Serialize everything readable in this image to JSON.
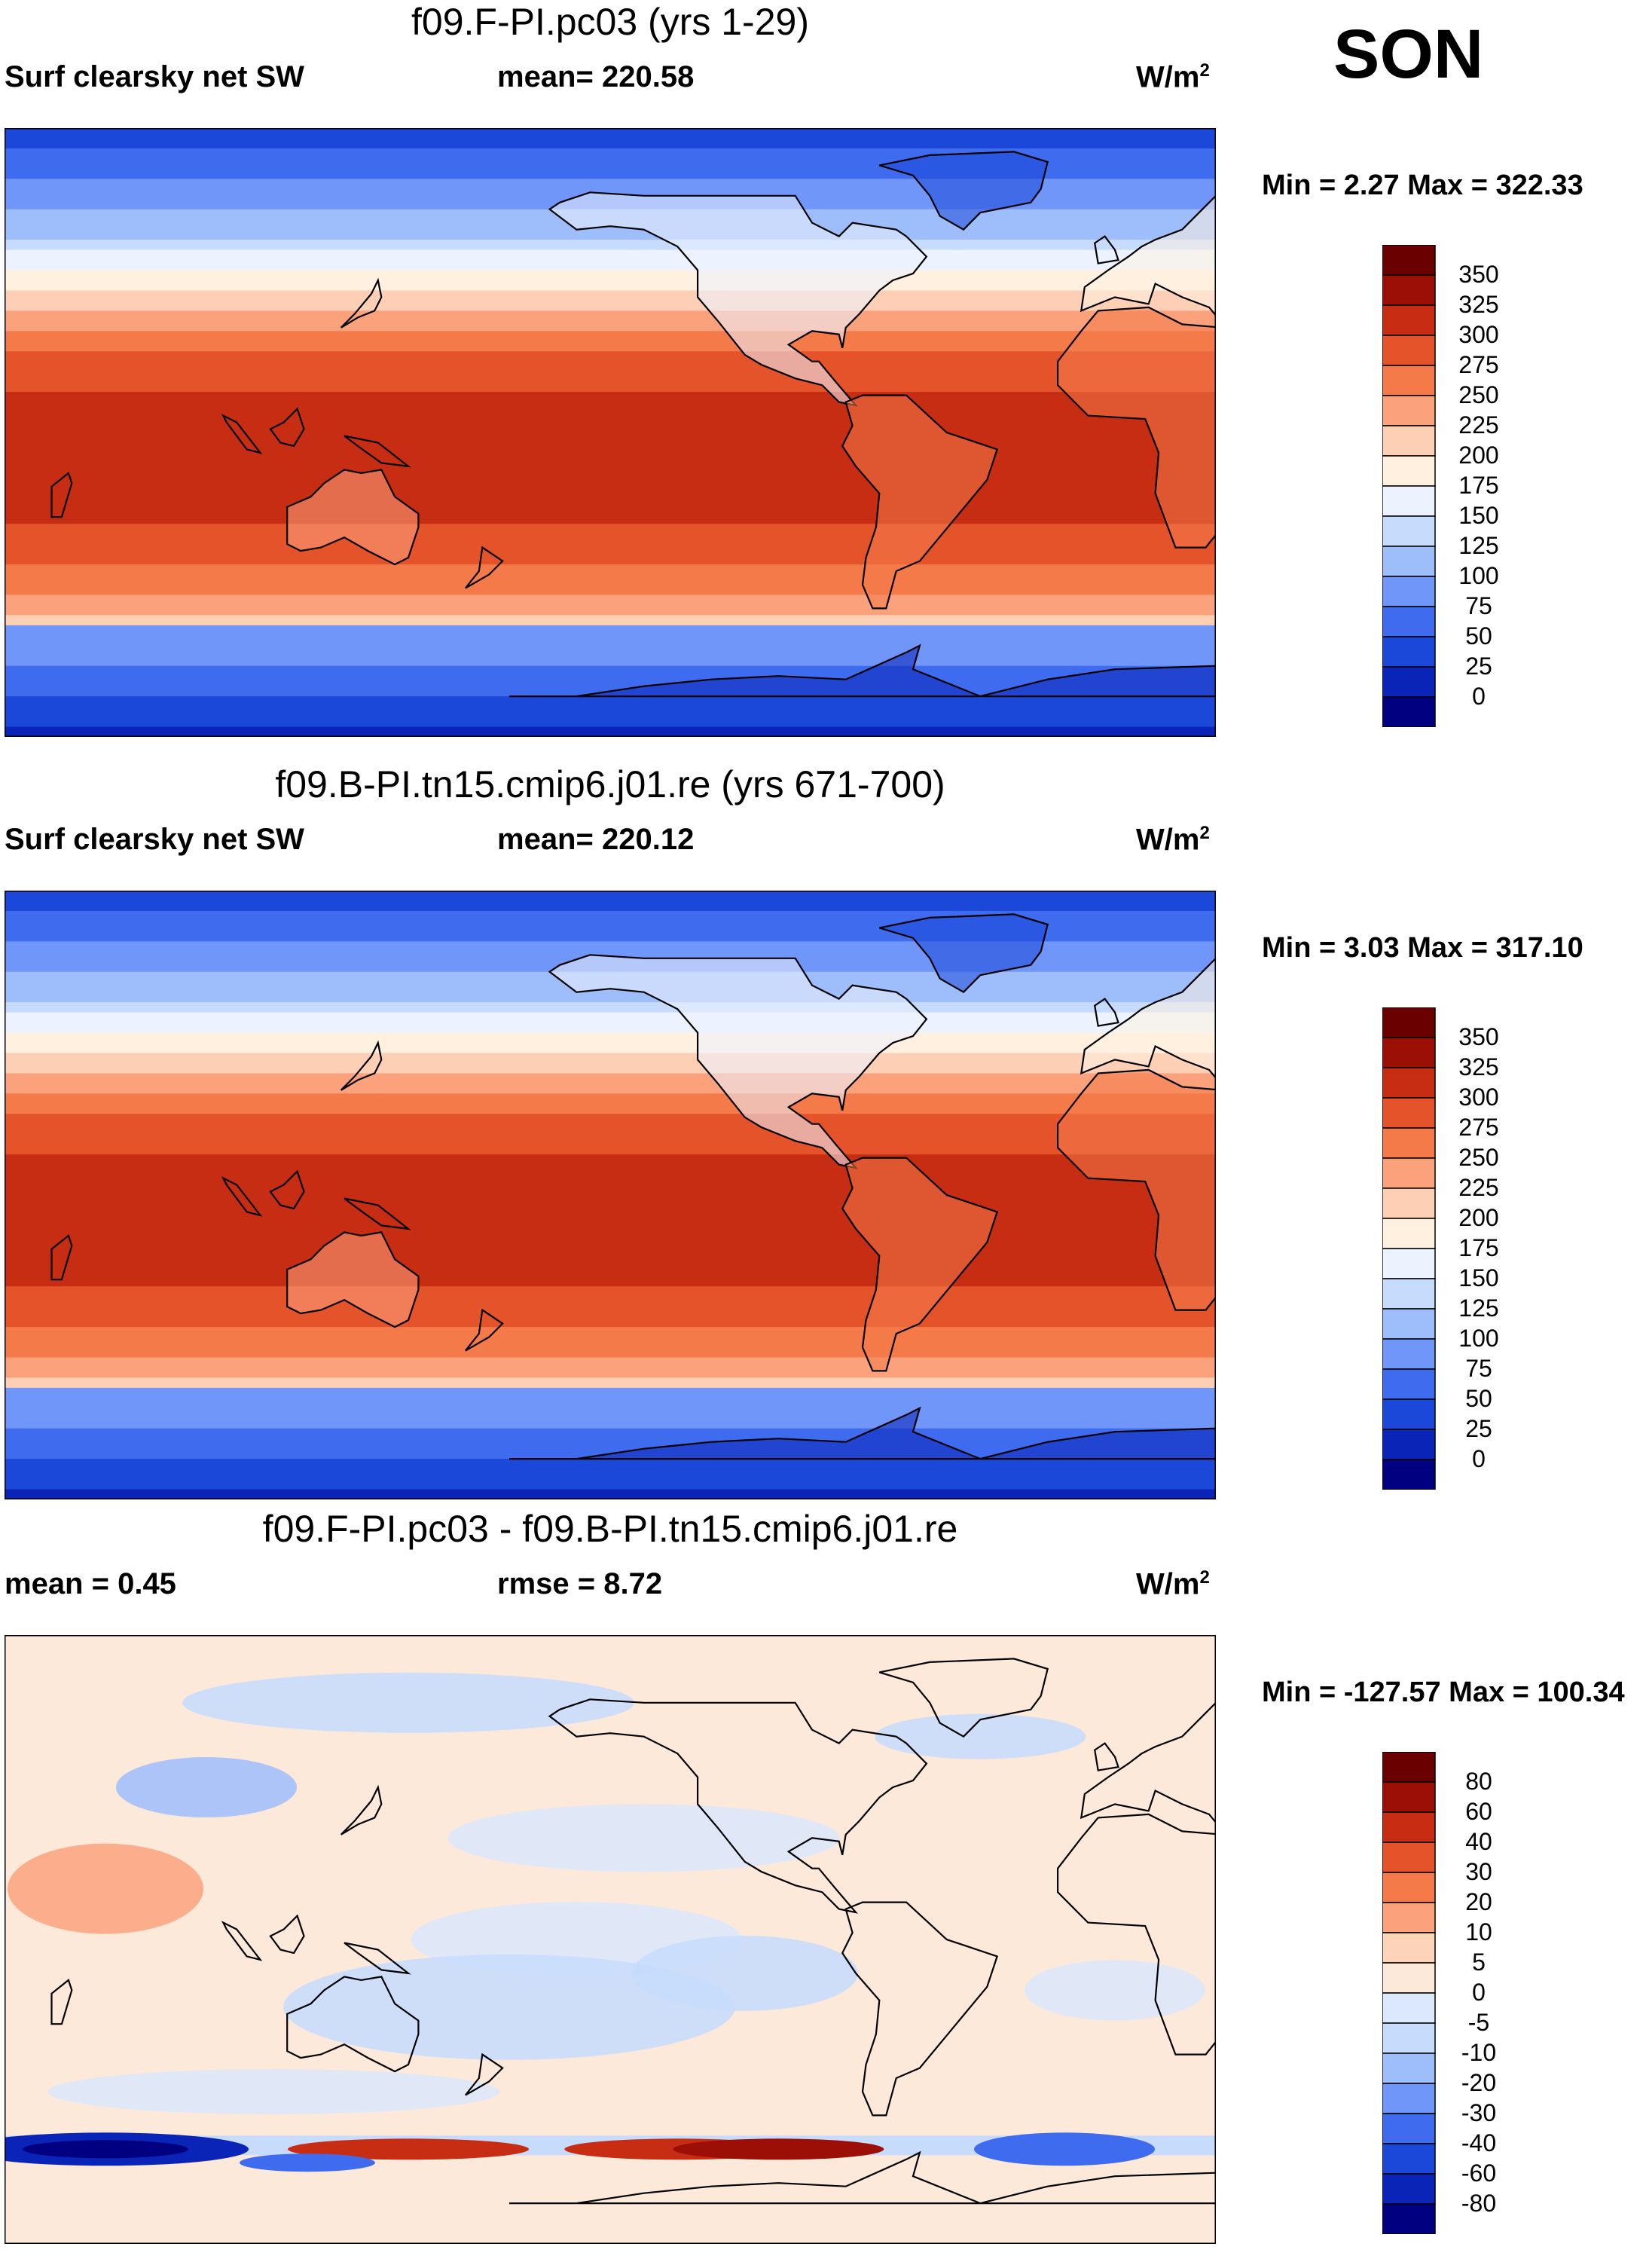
{
  "season": "SON",
  "colors": {
    "abs": [
      "#000080",
      "#0a24b8",
      "#1b48d8",
      "#3f6cef",
      "#6f96f8",
      "#9dbdfb",
      "#c7dcfd",
      "#ecf3ff",
      "#fff0e0",
      "#fdd0b6",
      "#fba27d",
      "#f47a4a",
      "#e4532a",
      "#c62d12",
      "#9c0f06",
      "#6a0000"
    ],
    "diff": [
      "#000080",
      "#0a24b8",
      "#1b48d8",
      "#3f6cef",
      "#6f96f8",
      "#9dbdfb",
      "#c7dcfd",
      "#dbe8fd",
      "#fde9da",
      "#fdd3b9",
      "#fba27d",
      "#f47a4a",
      "#e4532a",
      "#c62d12",
      "#9c0f06",
      "#6a0000"
    ]
  },
  "chart_data": [
    {
      "type": "heatmap",
      "title": "f09.F-PI.pc03 (yrs 1-29)",
      "left_label": "Surf clearsky net SW",
      "center_label": "mean= 220.58",
      "units_base": "W/m",
      "units_sup": "2",
      "minmax": "Min =   2.27 Max = 322.33",
      "mean": 220.58,
      "min": 2.27,
      "max": 322.33,
      "levels": [
        "350",
        "325",
        "300",
        "275",
        "250",
        "225",
        "200",
        "175",
        "150",
        "125",
        "100",
        "75",
        "50",
        "25",
        "0"
      ],
      "palette": "abs",
      "field": "abs",
      "polar_peak": 14
    },
    {
      "type": "heatmap",
      "title": "f09.B-PI.tn15.cmip6.j01.re (yrs 671-700)",
      "left_label": "Surf clearsky net SW",
      "center_label": "mean= 220.12",
      "units_base": "W/m",
      "units_sup": "2",
      "minmax": "Min =   3.03 Max = 317.10",
      "mean": 220.12,
      "min": 3.03,
      "max": 317.1,
      "levels": [
        "350",
        "325",
        "300",
        "275",
        "250",
        "225",
        "200",
        "175",
        "150",
        "125",
        "100",
        "75",
        "50",
        "25",
        "0"
      ],
      "palette": "abs",
      "field": "abs",
      "polar_peak": 13
    },
    {
      "type": "heatmap",
      "title": "f09.F-PI.pc03 - f09.B-PI.tn15.cmip6.j01.re",
      "left_label": "mean =   0.45",
      "center_label": "rmse =   8.72",
      "units_base": "W/m",
      "units_sup": "2",
      "minmax": "Min = -127.57 Max = 100.34",
      "mean": 0.45,
      "rmse": 8.72,
      "min": -127.57,
      "max": 100.34,
      "levels": [
        "80",
        "60",
        "40",
        "30",
        "20",
        "10",
        "5",
        "0",
        "-5",
        "-10",
        "-20",
        "-30",
        "-40",
        "-60",
        "-80"
      ],
      "palette": "diff",
      "field": "diff"
    }
  ]
}
